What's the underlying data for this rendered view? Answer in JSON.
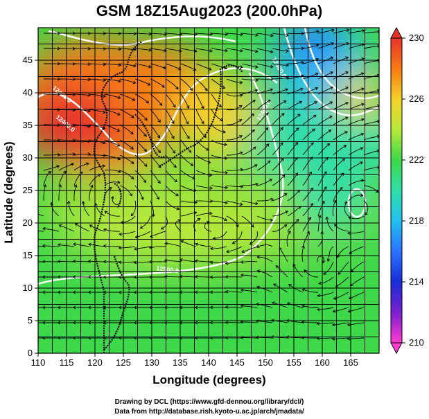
{
  "chart_data": {
    "type": "heatmap",
    "title": "GSM 18Z15Aug2023 (200.0hPa)",
    "xlabel": "Longitude (degrees)",
    "ylabel": "Latitude  (degrees)",
    "xlim": [
      110,
      170
    ],
    "ylim": [
      0,
      50
    ],
    "x_ticks": [
      110,
      115,
      120,
      125,
      130,
      135,
      140,
      145,
      150,
      155,
      160,
      165
    ],
    "y_ticks": [
      0,
      5,
      10,
      15,
      20,
      25,
      30,
      35,
      40,
      45
    ],
    "grid": true,
    "colorbar": {
      "min": 210,
      "max": 230,
      "ticks": [
        210,
        214,
        218,
        222,
        226,
        230
      ]
    },
    "contour_labels": [
      "12400.0",
      "12400.0",
      "12400.0",
      "12400.0",
      "12500.0"
    ],
    "colors": {
      "c210": "#ff3dd0",
      "c212": "#7a1fd0",
      "c214": "#1a2ed8",
      "c216": "#2a73ff",
      "c218": "#22c0f0",
      "c220": "#2fdfa8",
      "c222": "#3ed84a",
      "c224": "#b8e83a",
      "c226": "#f6d22a",
      "c228": "#f77a14",
      "c230": "#e8352c"
    }
  },
  "credits": {
    "line1": "Drawing by DCL (https://www.gfd-dennou.org/library/dcl/)",
    "line2": "Data from http://database.rish.kyoto-u.ac.jp/arch/jmadata/"
  }
}
